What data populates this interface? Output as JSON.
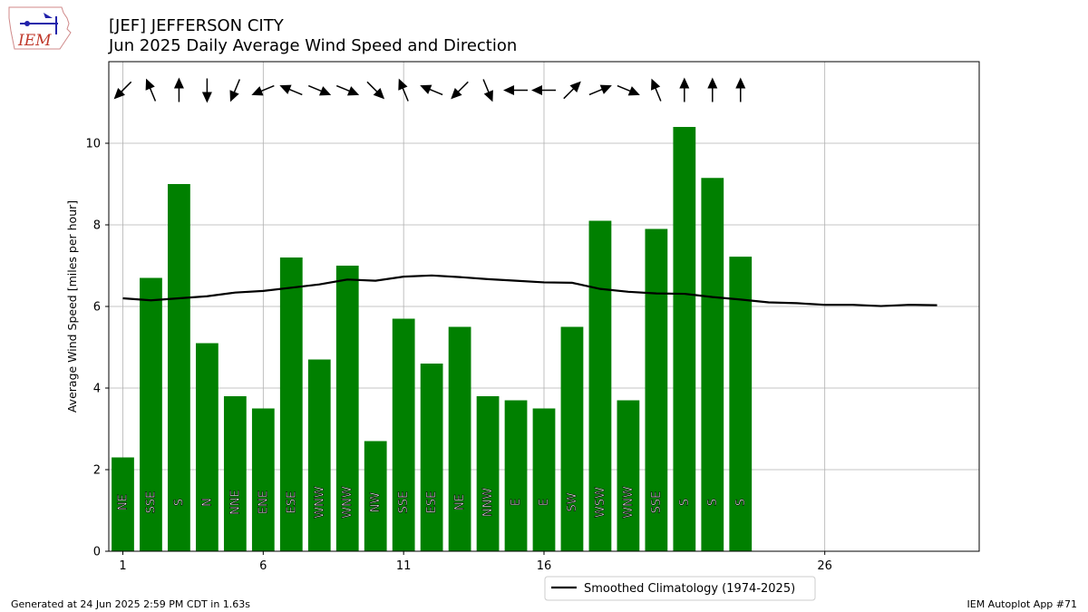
{
  "header": {
    "title_line1": "[JEF] JEFFERSON CITY",
    "title_line2": "Jun 2025 Daily Average Wind Speed and Direction"
  },
  "logo": {
    "text": "IEM",
    "color": "#c0392b"
  },
  "footer": {
    "left": "Generated at 24 Jun 2025 2:59 PM CDT in 1.63s",
    "right": "IEM Autoplot App #71"
  },
  "chart_data": {
    "type": "bar",
    "ylabel": "Average Wind Speed [miles per hour]",
    "xlim": [
      0.5,
      31.5
    ],
    "ylim": [
      0,
      12
    ],
    "xticks": [
      1,
      6,
      11,
      16,
      26
    ],
    "yticks": [
      0,
      2,
      4,
      6,
      8,
      10
    ],
    "grid": true,
    "bar_color": "#008000",
    "days": [
      1,
      2,
      3,
      4,
      5,
      6,
      7,
      8,
      9,
      10,
      11,
      12,
      13,
      14,
      15,
      16,
      17,
      18,
      19,
      20,
      21,
      22,
      23
    ],
    "values": [
      2.3,
      6.7,
      9.0,
      5.1,
      3.8,
      3.5,
      7.2,
      4.7,
      7.0,
      2.7,
      5.7,
      4.6,
      5.5,
      3.8,
      3.7,
      3.5,
      5.5,
      8.1,
      3.7,
      7.9,
      10.4,
      9.15,
      7.22
    ],
    "directions": [
      "NE",
      "SSE",
      "S",
      "N",
      "NNE",
      "ENE",
      "ESE",
      "WNW",
      "WNW",
      "NW",
      "SSE",
      "ESE",
      "NE",
      "NNW",
      "E",
      "E",
      "SW",
      "WSW",
      "WNW",
      "SSE",
      "S",
      "S",
      "S"
    ],
    "climatology": {
      "name": "Smoothed Climatology (1974-2025)",
      "color": "#000000",
      "x": [
        1,
        2,
        3,
        4,
        5,
        6,
        7,
        8,
        9,
        10,
        11,
        12,
        13,
        14,
        15,
        16,
        17,
        18,
        19,
        20,
        21,
        22,
        23,
        24,
        25,
        26,
        27,
        28,
        29,
        30
      ],
      "y": [
        6.2,
        6.15,
        6.2,
        6.25,
        6.34,
        6.38,
        6.46,
        6.54,
        6.66,
        6.63,
        6.73,
        6.76,
        6.72,
        6.67,
        6.63,
        6.59,
        6.58,
        6.43,
        6.36,
        6.32,
        6.31,
        6.23,
        6.17,
        6.1,
        6.08,
        6.04,
        6.04,
        6.01,
        6.04,
        6.03
      ]
    },
    "legend": "bottom-center"
  }
}
